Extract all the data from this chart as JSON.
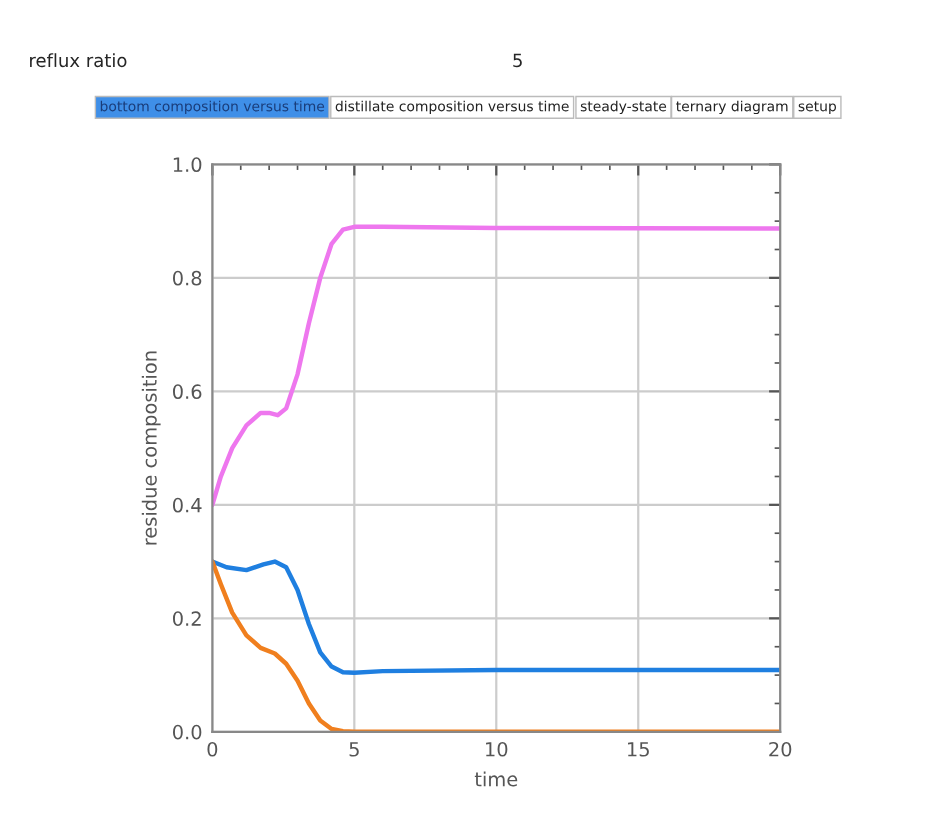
{
  "chart_data": {
    "type": "line",
    "xlabel": "time",
    "ylabel": "residue composition",
    "xlim": [
      0,
      20
    ],
    "ylim": [
      0,
      1
    ],
    "xticks": [
      0,
      5,
      10,
      15,
      20
    ],
    "yticks": [
      {
        "value": 0,
        "label": "0.0"
      },
      0.2,
      0.4,
      0.6,
      0.8,
      {
        "value": 1,
        "label": "1.0"
      }
    ],
    "grid": true,
    "marker": "none",
    "line_style": "solid",
    "annotations": [
      "reflux ratio",
      "5",
      "bottom composition versus time",
      "distillate composition versus time",
      "steady-state",
      "ternary diagram",
      "setup"
    ],
    "series": [
      {
        "color": "#ee77ee",
        "x": [
          0,
          0.3,
          0.7,
          1.2,
          1.7,
          2.0,
          2.3,
          2.6,
          3.0,
          3.4,
          3.8,
          4.2,
          4.6,
          5,
          6,
          10,
          20
        ],
        "values": [
          0.4,
          0.45,
          0.5,
          0.54,
          0.562,
          0.562,
          0.558,
          0.57,
          0.63,
          0.72,
          0.8,
          0.86,
          0.885,
          0.89,
          0.89,
          0.888,
          0.887
        ]
      },
      {
        "color": "#1f7fe0",
        "x": [
          0,
          0.5,
          1.2,
          1.8,
          2.2,
          2.6,
          3.0,
          3.4,
          3.8,
          4.2,
          4.6,
          5,
          6,
          10,
          20
        ],
        "values": [
          0.3,
          0.29,
          0.285,
          0.295,
          0.3,
          0.29,
          0.25,
          0.19,
          0.14,
          0.115,
          0.105,
          0.104,
          0.107,
          0.109,
          0.109
        ]
      },
      {
        "color": "#f07f1e",
        "x": [
          0,
          0.3,
          0.7,
          1.2,
          1.7,
          2.2,
          2.6,
          3.0,
          3.4,
          3.8,
          4.2,
          4.6,
          5,
          6,
          20
        ],
        "values": [
          0.3,
          0.26,
          0.21,
          0.17,
          0.148,
          0.138,
          0.12,
          0.09,
          0.05,
          0.02,
          0.005,
          0.001,
          0,
          0,
          0
        ]
      }
    ]
  }
}
